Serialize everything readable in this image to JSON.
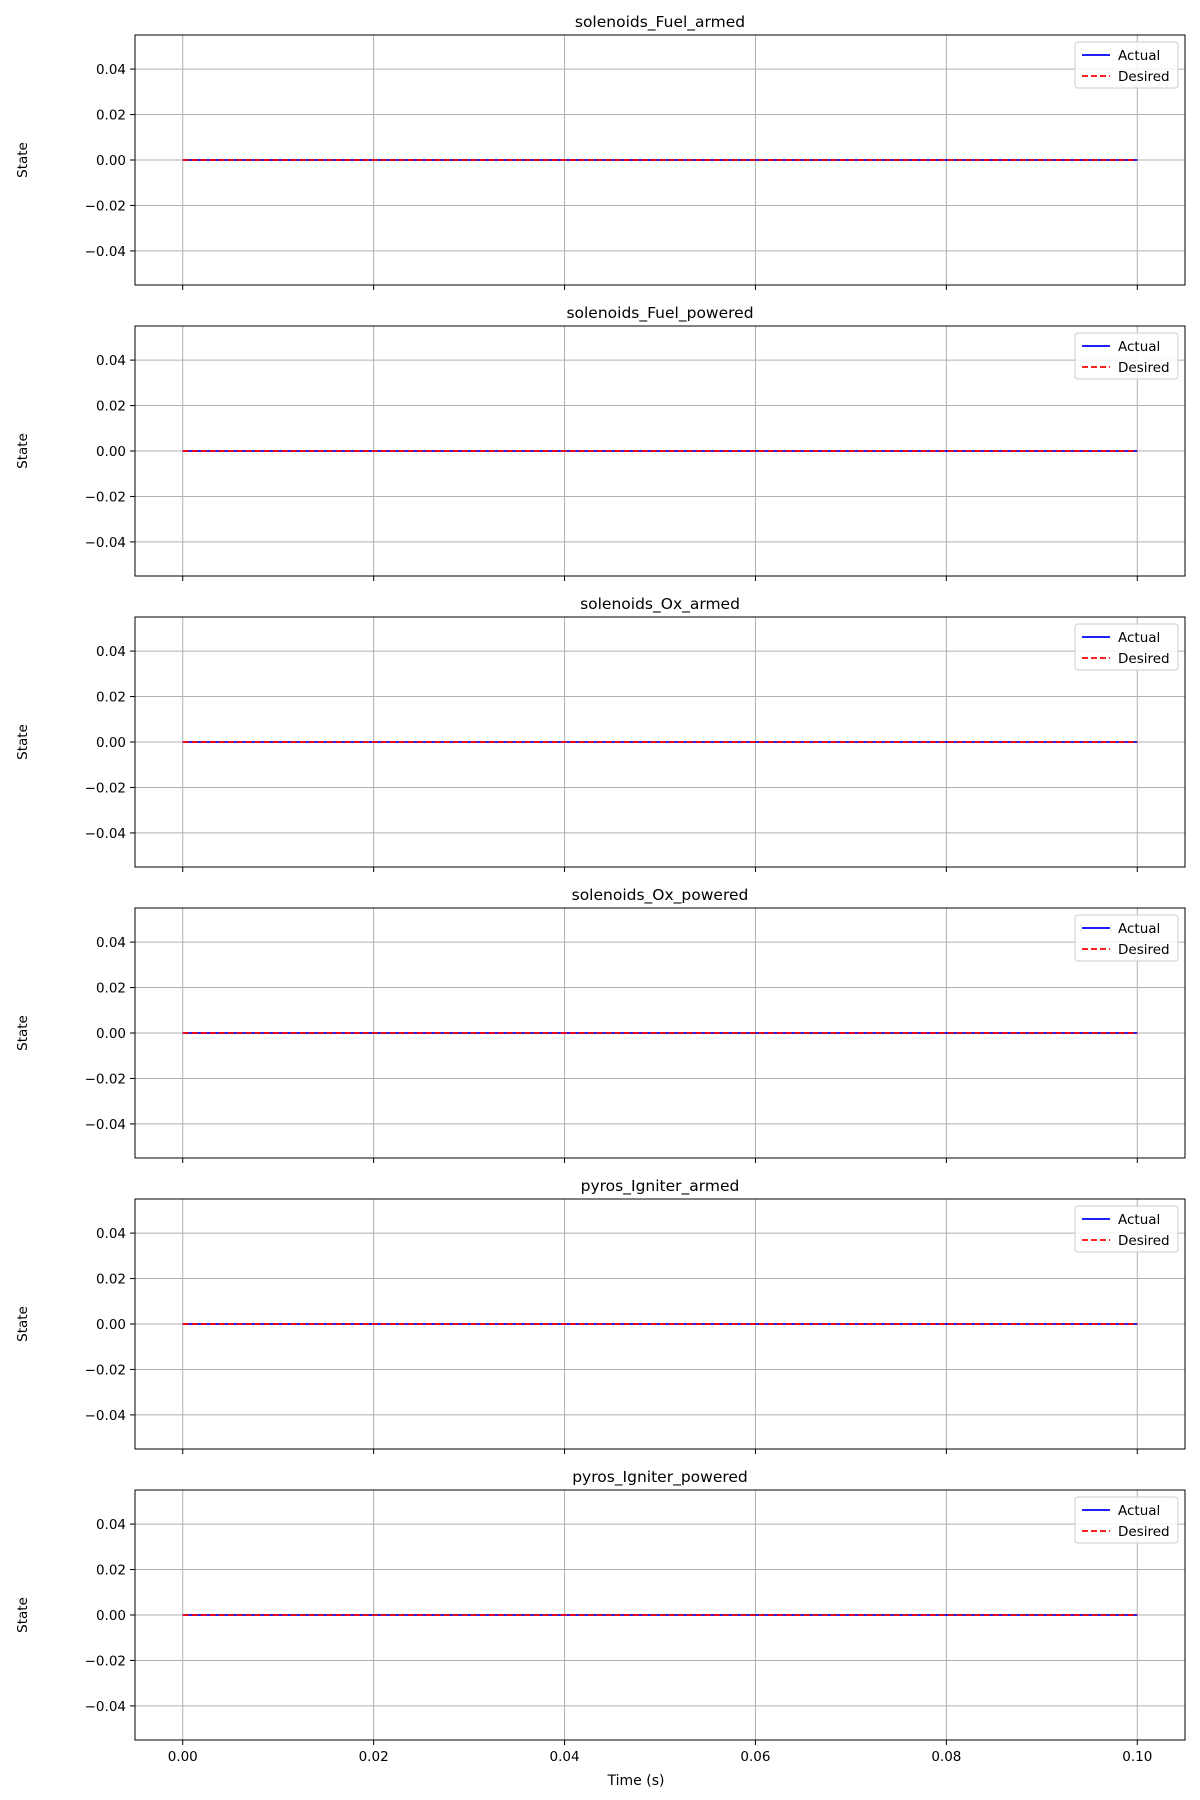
{
  "xlabel": "Time (s)",
  "xticks": [
    "0.00",
    "0.02",
    "0.04",
    "0.06",
    "0.08",
    "0.10"
  ],
  "chart_data": [
    {
      "type": "line",
      "title": "solenoids_Fuel_armed",
      "xlabel": "",
      "ylabel": "State",
      "xlim": [
        -0.005,
        0.105
      ],
      "ylim": [
        -0.055,
        0.055
      ],
      "grid": true,
      "legend": "top-right",
      "yticks": [
        "0.04",
        "0.02",
        "0.00",
        "−0.02",
        "−0.04"
      ],
      "x": [
        0.0,
        0.1
      ],
      "series": [
        {
          "name": "Actual",
          "values": [
            0,
            0
          ],
          "color": "#0000ff",
          "style": "solid"
        },
        {
          "name": "Desired",
          "values": [
            0,
            0
          ],
          "color": "#ff0000",
          "style": "dashed"
        }
      ]
    },
    {
      "type": "line",
      "title": "solenoids_Fuel_powered",
      "xlabel": "",
      "ylabel": "State",
      "xlim": [
        -0.005,
        0.105
      ],
      "ylim": [
        -0.055,
        0.055
      ],
      "grid": true,
      "legend": "top-right",
      "yticks": [
        "0.04",
        "0.02",
        "0.00",
        "−0.02",
        "−0.04"
      ],
      "x": [
        0.0,
        0.1
      ],
      "series": [
        {
          "name": "Actual",
          "values": [
            0,
            0
          ],
          "color": "#0000ff",
          "style": "solid"
        },
        {
          "name": "Desired",
          "values": [
            0,
            0
          ],
          "color": "#ff0000",
          "style": "dashed"
        }
      ]
    },
    {
      "type": "line",
      "title": "solenoids_Ox_armed",
      "xlabel": "",
      "ylabel": "State",
      "xlim": [
        -0.005,
        0.105
      ],
      "ylim": [
        -0.055,
        0.055
      ],
      "grid": true,
      "legend": "top-right",
      "yticks": [
        "0.04",
        "0.02",
        "0.00",
        "−0.02",
        "−0.04"
      ],
      "x": [
        0.0,
        0.1
      ],
      "series": [
        {
          "name": "Actual",
          "values": [
            0,
            0
          ],
          "color": "#0000ff",
          "style": "solid"
        },
        {
          "name": "Desired",
          "values": [
            0,
            0
          ],
          "color": "#ff0000",
          "style": "dashed"
        }
      ]
    },
    {
      "type": "line",
      "title": "solenoids_Ox_powered",
      "xlabel": "",
      "ylabel": "State",
      "xlim": [
        -0.005,
        0.105
      ],
      "ylim": [
        -0.055,
        0.055
      ],
      "grid": true,
      "legend": "top-right",
      "yticks": [
        "0.04",
        "0.02",
        "0.00",
        "−0.02",
        "−0.04"
      ],
      "x": [
        0.0,
        0.1
      ],
      "series": [
        {
          "name": "Actual",
          "values": [
            0,
            0
          ],
          "color": "#0000ff",
          "style": "solid"
        },
        {
          "name": "Desired",
          "values": [
            0,
            0
          ],
          "color": "#ff0000",
          "style": "dashed"
        }
      ]
    },
    {
      "type": "line",
      "title": "pyros_Igniter_armed",
      "xlabel": "",
      "ylabel": "State",
      "xlim": [
        -0.005,
        0.105
      ],
      "ylim": [
        -0.055,
        0.055
      ],
      "grid": true,
      "legend": "top-right",
      "yticks": [
        "0.04",
        "0.02",
        "0.00",
        "−0.02",
        "−0.04"
      ],
      "x": [
        0.0,
        0.1
      ],
      "series": [
        {
          "name": "Actual",
          "values": [
            0,
            0
          ],
          "color": "#0000ff",
          "style": "solid"
        },
        {
          "name": "Desired",
          "values": [
            0,
            0
          ],
          "color": "#ff0000",
          "style": "dashed"
        }
      ]
    },
    {
      "type": "line",
      "title": "pyros_Igniter_powered",
      "xlabel": "Time (s)",
      "ylabel": "State",
      "xlim": [
        -0.005,
        0.105
      ],
      "ylim": [
        -0.055,
        0.055
      ],
      "grid": true,
      "legend": "top-right",
      "yticks": [
        "0.04",
        "0.02",
        "0.00",
        "−0.02",
        "−0.04"
      ],
      "x": [
        0.0,
        0.1
      ],
      "series": [
        {
          "name": "Actual",
          "values": [
            0,
            0
          ],
          "color": "#0000ff",
          "style": "solid"
        },
        {
          "name": "Desired",
          "values": [
            0,
            0
          ],
          "color": "#ff0000",
          "style": "dashed"
        }
      ]
    }
  ]
}
